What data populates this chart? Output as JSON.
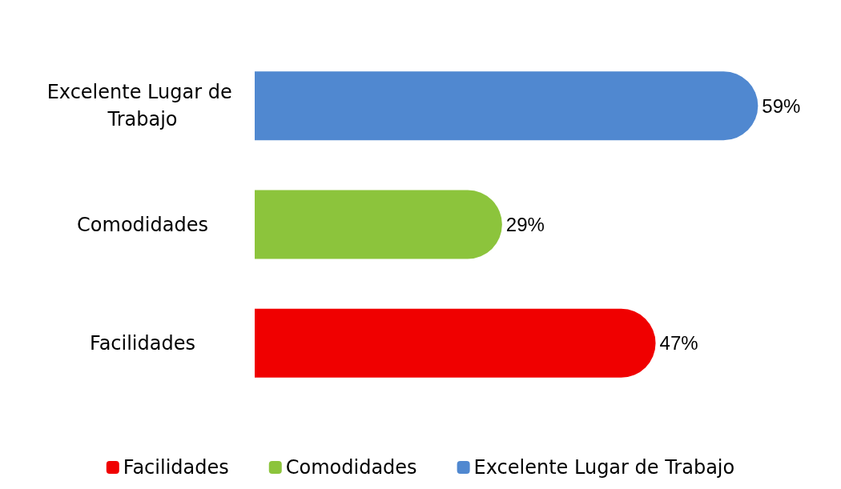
{
  "chart_data": {
    "type": "bar",
    "orientation": "horizontal",
    "categories": [
      "Excelente Lugar de Trabajo",
      "Comodidades",
      "Facilidades"
    ],
    "legend": "bottom",
    "series": [
      {
        "name": "Facilidades",
        "color": "#f00000",
        "values": [
          null,
          null,
          47
        ],
        "value_labels": [
          null,
          null,
          "47%"
        ]
      },
      {
        "name": "Comodidades",
        "color": "#8cc43c",
        "values": [
          null,
          29,
          null
        ],
        "value_labels": [
          null,
          "29%",
          null
        ]
      },
      {
        "name": "Excelente Lugar de Trabajo",
        "color": "#5088d0",
        "values": [
          59,
          null,
          null
        ],
        "value_labels": [
          "59%",
          null,
          null
        ]
      }
    ]
  }
}
